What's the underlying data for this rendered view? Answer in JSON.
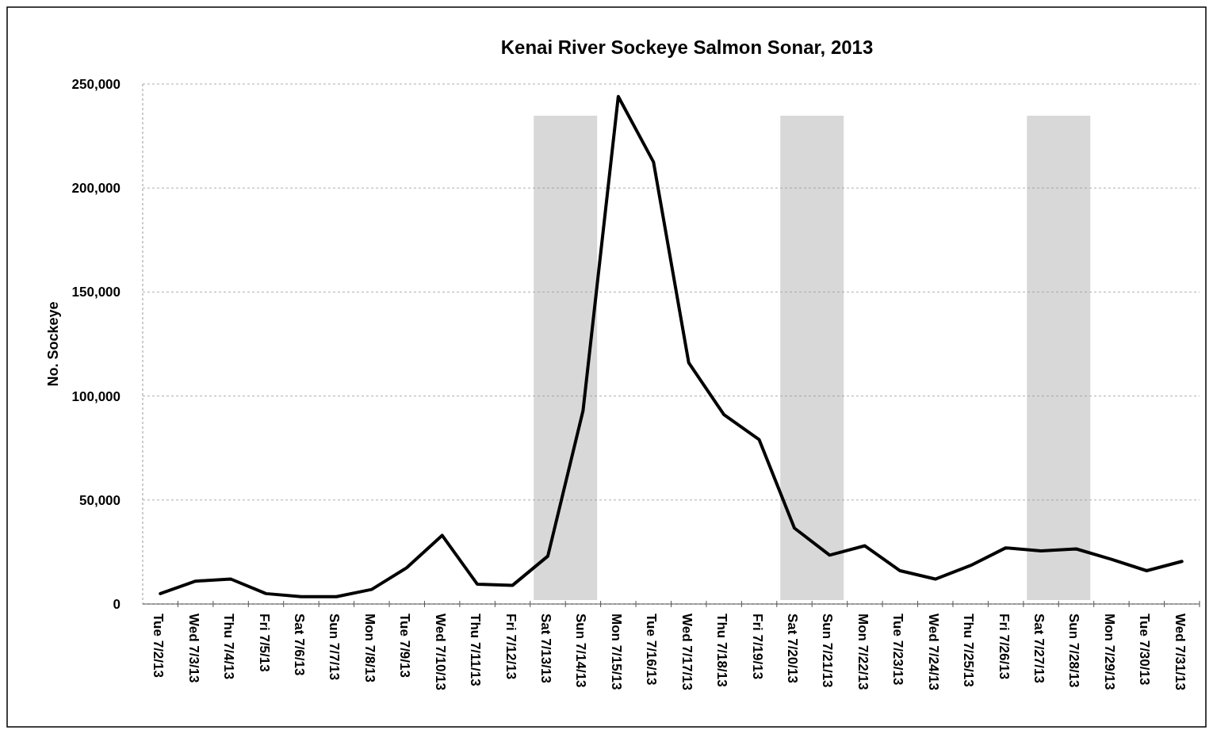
{
  "chart_data": {
    "type": "line",
    "title": "Kenai River Sockeye Salmon Sonar, 2013",
    "ylabel": "No. Sockeye",
    "categories": [
      "Tue 7/2/13",
      "Wed 7/3/13",
      "Thu 7/4/13",
      "Fri 7/5/13",
      "Sat 7/6/13",
      "Sun 7/7/13",
      "Mon 7/8/13",
      "Tue 7/9/13",
      "Wed 7/10/13",
      "Thu 7/11/13",
      "Fri 7/12/13",
      "Sat 7/13/13",
      "Sun 7/14/13",
      "Mon 7/15/13",
      "Tue 7/16/13",
      "Wed 7/17/13",
      "Thu 7/18/13",
      "Fri 7/19/13",
      "Sat 7/20/13",
      "Sun 7/21/13",
      "Mon 7/22/13",
      "Tue 7/23/13",
      "Wed 7/24/13",
      "Thu 7/25/13",
      "Fri 7/26/13",
      "Sat 7/27/13",
      "Sun 7/28/13",
      "Mon 7/29/13",
      "Tue 7/30/13",
      "Wed 7/31/13"
    ],
    "series": [
      {
        "color": "#000000",
        "values": [
          5000,
          11000,
          12000,
          5000,
          3500,
          3500,
          7000,
          17500,
          33000,
          9500,
          9000,
          23000,
          93000,
          244000,
          212500,
          116000,
          91000,
          79000,
          36500,
          23500,
          28000,
          16000,
          12000,
          18500,
          27000,
          25500,
          26500,
          21500,
          16000,
          20500
        ]
      }
    ],
    "ylim": [
      0,
      250000
    ],
    "yticks": [
      {
        "value": 0,
        "label": "0"
      },
      {
        "value": 50000,
        "label": "50,000"
      },
      {
        "value": 100000,
        "label": "100,000"
      },
      {
        "value": 150000,
        "label": "150,000"
      },
      {
        "value": 200000,
        "label": "200,000"
      },
      {
        "value": 250000,
        "label": "250,000"
      }
    ],
    "grid": "y",
    "marker": "none",
    "line_style": "solid",
    "bands": [
      {
        "axis": "x",
        "from": "Sat 7/13/13",
        "to": "Sun 7/14/13",
        "color": "#c8c8c8"
      },
      {
        "axis": "x",
        "from": "Sat 7/20/13",
        "to": "Sun 7/21/13",
        "color": "#c8c8c8"
      },
      {
        "axis": "x",
        "from": "Sat 7/27/13",
        "to": "Sun 7/28/13",
        "color": "#c8c8c8"
      }
    ]
  }
}
